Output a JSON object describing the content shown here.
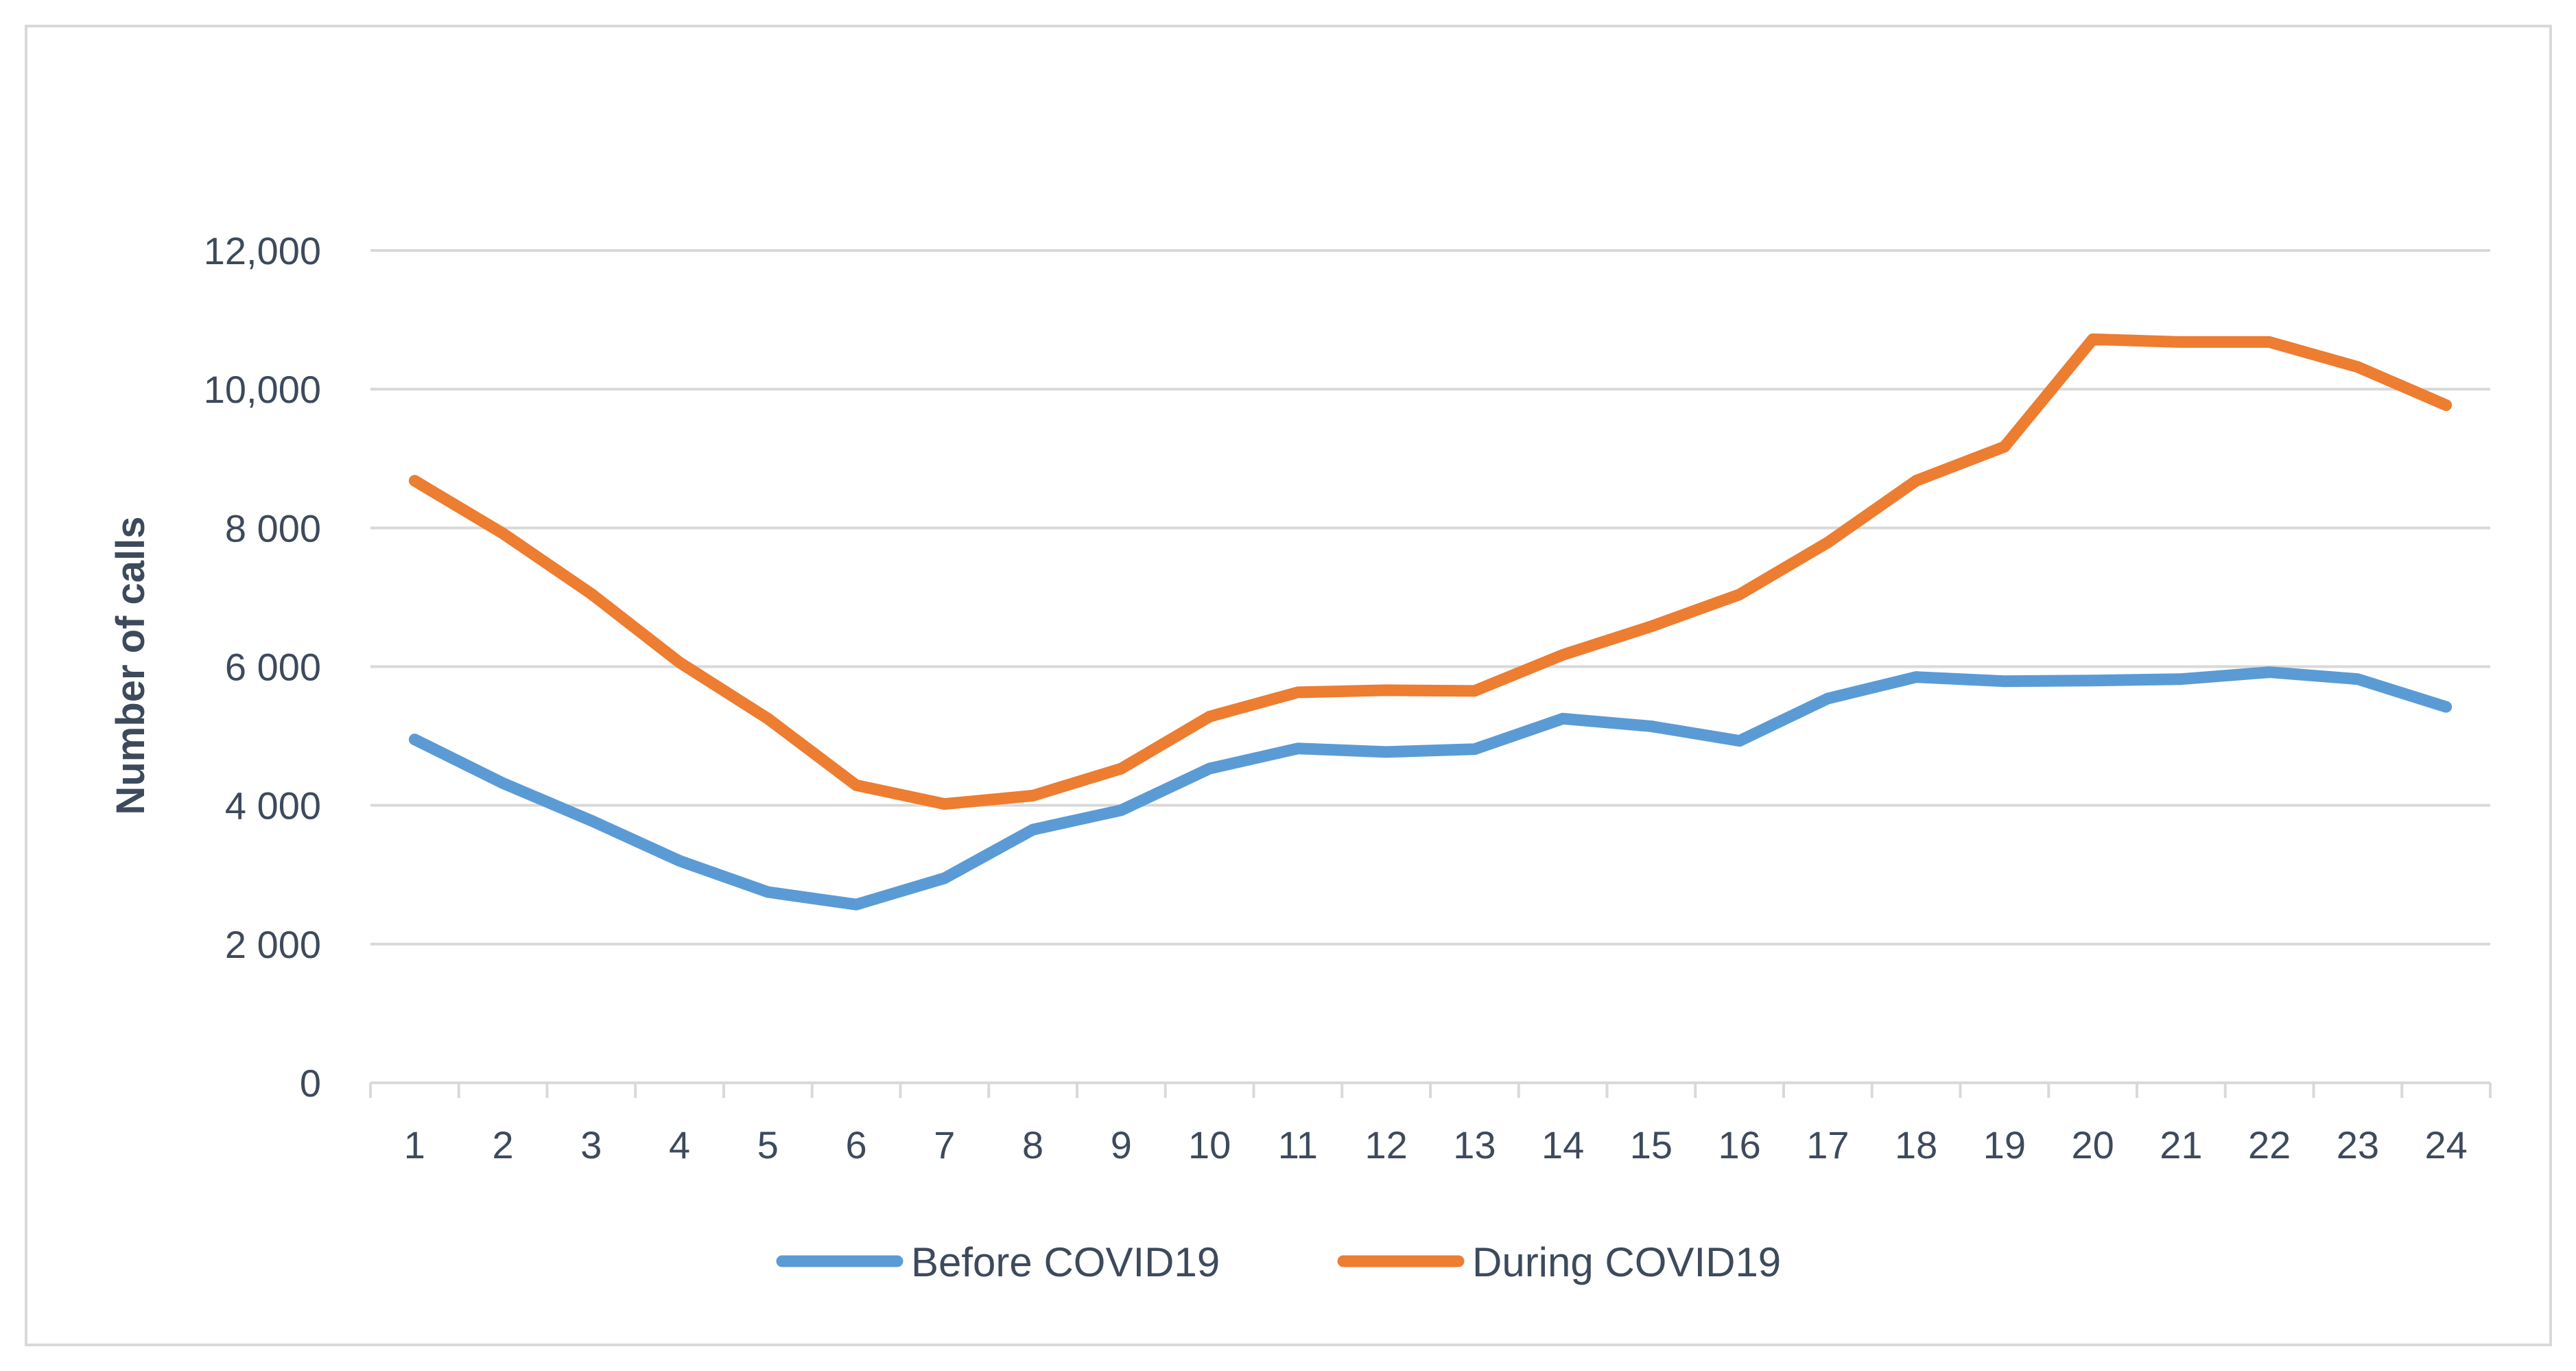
{
  "chart_data": {
    "type": "line",
    "title": "",
    "xlabel": "",
    "ylabel": "Number of calls",
    "ylim": [
      0,
      12000
    ],
    "yticks": [
      0,
      2000,
      4000,
      6000,
      8000,
      10000,
      12000
    ],
    "ytick_labels": [
      "0",
      "2 000",
      "4 000",
      "6 000",
      "8 000",
      "10,000",
      "12,000"
    ],
    "categories": [
      "1",
      "2",
      "3",
      "4",
      "5",
      "6",
      "7",
      "8",
      "9",
      "10",
      "11",
      "12",
      "13",
      "14",
      "15",
      "16",
      "17",
      "18",
      "19",
      "20",
      "21",
      "22",
      "23",
      "24"
    ],
    "grid": true,
    "legend_position": "bottom",
    "series": [
      {
        "name": "Before COVID19",
        "color": "#5b9bd5",
        "values": [
          4950,
          4320,
          3780,
          3200,
          2750,
          2570,
          2950,
          3650,
          3930,
          4530,
          4820,
          4770,
          4810,
          5250,
          5140,
          4930,
          5540,
          5850,
          5790,
          5800,
          5820,
          5920,
          5820,
          5420
        ]
      },
      {
        "name": "During COVID19",
        "color": "#ed7d31",
        "values": [
          8680,
          7920,
          7050,
          6060,
          5250,
          4290,
          4020,
          4140,
          4530,
          5280,
          5630,
          5660,
          5650,
          6170,
          6580,
          7040,
          7790,
          8680,
          9170,
          10720,
          10680,
          10680,
          10320,
          9770
        ]
      }
    ]
  }
}
